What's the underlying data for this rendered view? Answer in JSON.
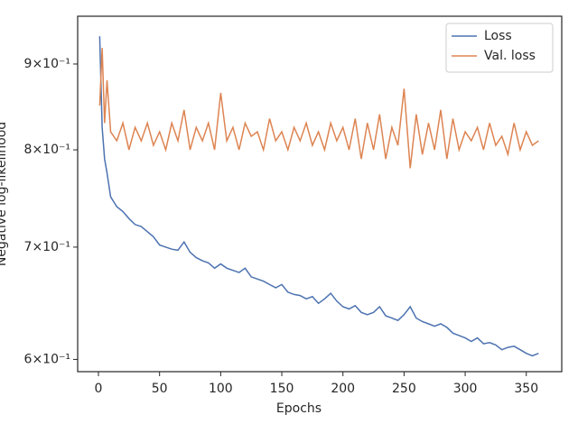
{
  "chart_data": {
    "type": "line",
    "xlabel": "Epochs",
    "ylabel": "Negative log-likelihood",
    "x": [
      1,
      3,
      5,
      7,
      10,
      15,
      20,
      25,
      30,
      35,
      40,
      45,
      50,
      55,
      60,
      65,
      70,
      75,
      80,
      85,
      90,
      95,
      100,
      105,
      110,
      115,
      120,
      125,
      130,
      135,
      140,
      145,
      150,
      155,
      160,
      165,
      170,
      175,
      180,
      185,
      190,
      195,
      200,
      205,
      210,
      215,
      220,
      225,
      230,
      235,
      240,
      245,
      250,
      255,
      260,
      265,
      270,
      275,
      280,
      285,
      290,
      295,
      300,
      305,
      310,
      315,
      320,
      325,
      330,
      335,
      340,
      345,
      350,
      355,
      360
    ],
    "series": [
      {
        "name": "Loss",
        "color": "#4c72b0",
        "values": [
          0.935,
          0.825,
          0.79,
          0.775,
          0.75,
          0.74,
          0.735,
          0.728,
          0.722,
          0.72,
          0.715,
          0.71,
          0.702,
          0.7,
          0.698,
          0.697,
          0.705,
          0.695,
          0.69,
          0.687,
          0.685,
          0.68,
          0.684,
          0.68,
          0.678,
          0.676,
          0.68,
          0.672,
          0.67,
          0.668,
          0.665,
          0.662,
          0.665,
          0.658,
          0.656,
          0.655,
          0.652,
          0.654,
          0.648,
          0.652,
          0.657,
          0.65,
          0.645,
          0.643,
          0.646,
          0.64,
          0.638,
          0.64,
          0.645,
          0.637,
          0.635,
          0.633,
          0.638,
          0.645,
          0.635,
          0.632,
          0.63,
          0.628,
          0.63,
          0.627,
          0.622,
          0.62,
          0.618,
          0.615,
          0.618,
          0.613,
          0.614,
          0.612,
          0.608,
          0.61,
          0.611,
          0.608,
          0.605,
          0.603,
          0.605
        ]
      },
      {
        "name": "Val. loss",
        "color": "#dd8452",
        "values": [
          0.85,
          0.92,
          0.83,
          0.88,
          0.82,
          0.81,
          0.83,
          0.8,
          0.825,
          0.81,
          0.83,
          0.805,
          0.82,
          0.8,
          0.83,
          0.81,
          0.845,
          0.8,
          0.825,
          0.81,
          0.83,
          0.8,
          0.865,
          0.81,
          0.825,
          0.8,
          0.83,
          0.815,
          0.82,
          0.8,
          0.835,
          0.81,
          0.82,
          0.8,
          0.825,
          0.81,
          0.83,
          0.805,
          0.82,
          0.8,
          0.83,
          0.81,
          0.825,
          0.8,
          0.835,
          0.79,
          0.83,
          0.8,
          0.84,
          0.79,
          0.825,
          0.805,
          0.87,
          0.78,
          0.84,
          0.795,
          0.83,
          0.8,
          0.845,
          0.79,
          0.835,
          0.8,
          0.82,
          0.81,
          0.825,
          0.8,
          0.83,
          0.805,
          0.815,
          0.795,
          0.83,
          0.8,
          0.82,
          0.805,
          0.81
        ]
      }
    ],
    "xlim": [
      -17,
      379
    ],
    "xticks": [
      0,
      50,
      100,
      150,
      200,
      250,
      300,
      350
    ],
    "ylim": [
      0.59,
      0.961
    ],
    "ylog": true,
    "yticks": [
      {
        "value": 0.6,
        "label": "6×10⁻¹"
      },
      {
        "value": 0.7,
        "label": "7×10⁻¹"
      },
      {
        "value": 0.8,
        "label": "8×10⁻¹"
      },
      {
        "value": 0.9,
        "label": "9×10⁻¹"
      }
    ],
    "legend": "upper right"
  }
}
